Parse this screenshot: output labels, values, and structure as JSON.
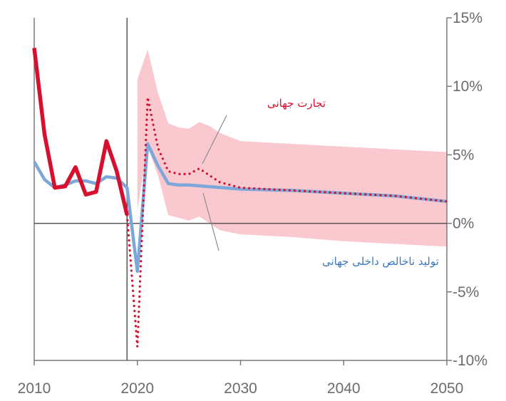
{
  "chart_data": {
    "type": "line",
    "title": "",
    "xlabel": "",
    "ylabel": "",
    "xlim": [
      2010,
      2050
    ],
    "ylim": [
      -10,
      15
    ],
    "x_ticks": [
      "2010",
      "2020",
      "2030",
      "2040",
      "2050"
    ],
    "y_ticks": [
      "15%",
      "10%",
      "5%",
      "0%",
      "-5%",
      "-10%"
    ],
    "y_axis_side": "right",
    "reference_lines": {
      "x": 2019,
      "y": 0
    },
    "colors": {
      "trade": "#d7102e",
      "gdp": "#7da7d8",
      "band": "#f9c9cf",
      "axis": "#7a7a7a",
      "refline": "#555555"
    },
    "annotations": {
      "trade_label": "تجارت جهانی",
      "gdp_label": "تولید ناخالص داخلی جهانی"
    },
    "series": [
      {
        "key": "gdp",
        "style": "solid",
        "points": [
          [
            2010,
            4.5
          ],
          [
            2011,
            3.2
          ],
          [
            2012,
            2.6
          ],
          [
            2013,
            2.8
          ],
          [
            2014,
            3.1
          ],
          [
            2015,
            3.1
          ],
          [
            2016,
            2.9
          ],
          [
            2017,
            3.4
          ],
          [
            2018,
            3.3
          ],
          [
            2019,
            2.6
          ],
          [
            2020,
            -3.5
          ],
          [
            2021,
            5.8
          ],
          [
            2022,
            4.2
          ],
          [
            2023,
            2.9
          ],
          [
            2024,
            2.8
          ],
          [
            2025,
            2.8
          ],
          [
            2030,
            2.5
          ],
          [
            2035,
            2.4
          ],
          [
            2040,
            2.2
          ],
          [
            2045,
            2.0
          ],
          [
            2050,
            1.6
          ]
        ]
      },
      {
        "key": "trade_hist",
        "style": "thick",
        "points": [
          [
            2010,
            12.8
          ],
          [
            2011,
            6.5
          ],
          [
            2012,
            2.6
          ],
          [
            2013,
            2.7
          ],
          [
            2014,
            4.1
          ],
          [
            2015,
            2.1
          ],
          [
            2016,
            2.3
          ],
          [
            2017,
            6.0
          ],
          [
            2018,
            3.8
          ],
          [
            2019,
            0.6
          ]
        ]
      },
      {
        "key": "trade_proj",
        "style": "dotted",
        "points": [
          [
            2019,
            0.6
          ],
          [
            2020,
            -9.0
          ],
          [
            2021,
            9.2
          ],
          [
            2022,
            5.5
          ],
          [
            2023,
            3.8
          ],
          [
            2024,
            3.6
          ],
          [
            2025,
            3.6
          ],
          [
            2026,
            4.0
          ],
          [
            2027,
            3.5
          ],
          [
            2028,
            3.0
          ],
          [
            2030,
            2.6
          ],
          [
            2035,
            2.4
          ],
          [
            2040,
            2.2
          ],
          [
            2045,
            2.0
          ],
          [
            2050,
            1.6
          ]
        ]
      }
    ],
    "band": {
      "upper": [
        [
          2020,
          10.5
        ],
        [
          2021,
          12.7
        ],
        [
          2022,
          9.5
        ],
        [
          2023,
          7.3
        ],
        [
          2024,
          7.0
        ],
        [
          2025,
          6.9
        ],
        [
          2026,
          7.4
        ],
        [
          2027,
          7.1
        ],
        [
          2028,
          6.6
        ],
        [
          2030,
          6.0
        ],
        [
          2035,
          5.8
        ],
        [
          2040,
          5.6
        ],
        [
          2045,
          5.4
        ],
        [
          2050,
          5.2
        ]
      ],
      "lower": [
        [
          2050,
          -1.7
        ],
        [
          2045,
          -1.5
        ],
        [
          2040,
          -1.3
        ],
        [
          2035,
          -1.0
        ],
        [
          2030,
          -0.8
        ],
        [
          2028,
          -0.5
        ],
        [
          2027,
          0.0
        ],
        [
          2026,
          0.5
        ],
        [
          2025,
          0.2
        ],
        [
          2024,
          0.4
        ],
        [
          2023,
          0.6
        ],
        [
          2022,
          3.5
        ],
        [
          2021,
          5.6
        ],
        [
          2020,
          1.0
        ]
      ]
    }
  }
}
